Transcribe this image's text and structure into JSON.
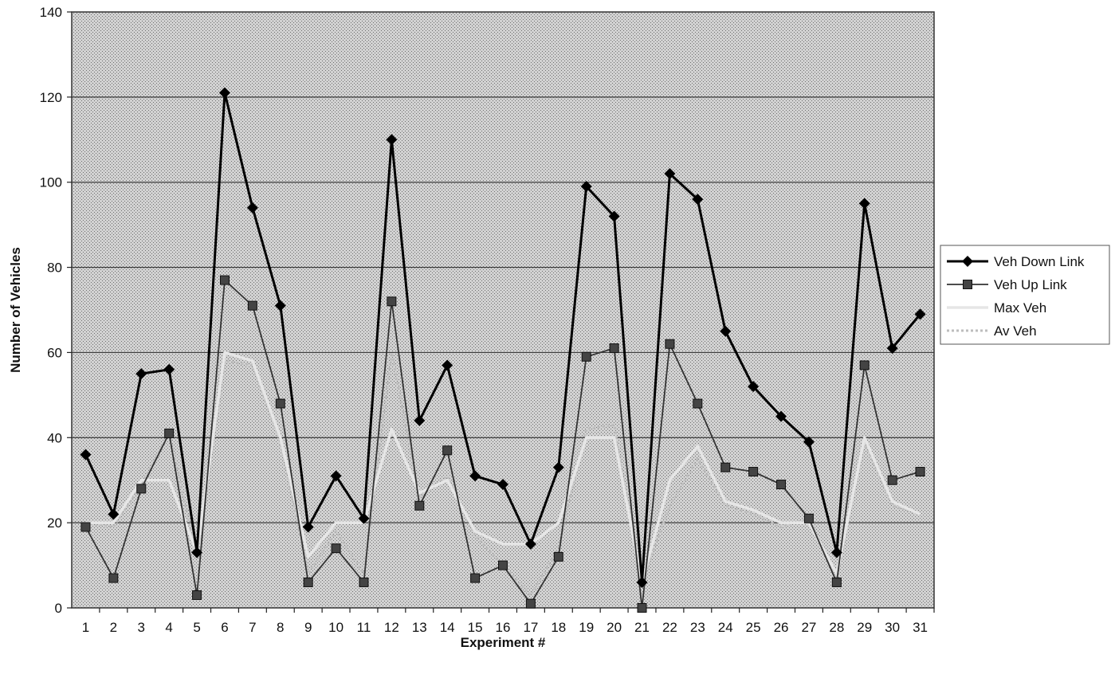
{
  "chart_data": {
    "type": "line",
    "xlabel": "Experiment #",
    "ylabel": "Number of Vehicles",
    "ylim": [
      0,
      140
    ],
    "yticks": [
      0,
      20,
      40,
      60,
      80,
      100,
      120,
      140
    ],
    "x": [
      1,
      2,
      3,
      4,
      5,
      6,
      7,
      8,
      9,
      10,
      11,
      12,
      13,
      14,
      15,
      16,
      17,
      18,
      19,
      20,
      21,
      22,
      23,
      24,
      25,
      26,
      27,
      28,
      29,
      30,
      31
    ],
    "grid": "horizontal",
    "legend_position": "right",
    "plot_background": "#c8c8c8",
    "series": [
      {
        "name": "Veh Down Link",
        "marker": "diamond",
        "color": "#000000",
        "values": [
          36,
          22,
          55,
          56,
          13,
          121,
          94,
          71,
          19,
          31,
          21,
          110,
          44,
          57,
          31,
          29,
          15,
          33,
          99,
          92,
          6,
          102,
          96,
          65,
          52,
          45,
          39,
          13,
          95,
          61,
          69
        ]
      },
      {
        "name": "Veh Up Link",
        "marker": "square",
        "color": "#333333",
        "values": [
          19,
          7,
          28,
          41,
          3,
          77,
          71,
          48,
          6,
          14,
          6,
          72,
          24,
          37,
          7,
          10,
          1,
          12,
          59,
          61,
          0,
          62,
          48,
          33,
          32,
          29,
          21,
          6,
          57,
          30,
          32
        ]
      },
      {
        "name": "Max Veh",
        "marker": "none",
        "color": "#e6e6e6",
        "values": [
          20,
          20,
          30,
          30,
          13,
          60,
          58,
          40,
          12,
          20,
          20,
          42,
          27,
          30,
          18,
          15,
          15,
          20,
          40,
          40,
          6,
          30,
          38,
          25,
          23,
          20,
          20,
          8,
          40,
          25,
          22
        ]
      },
      {
        "name": "Av Veh",
        "marker": "none",
        "color": "#bdbdbd",
        "values": [
          20,
          19,
          29,
          41,
          12,
          58,
          57,
          39,
          8,
          18,
          8,
          60,
          26,
          31,
          17,
          10,
          3,
          14,
          42,
          43,
          6,
          24,
          35,
          24,
          22,
          19,
          21,
          7,
          39,
          24,
          22
        ]
      }
    ]
  }
}
